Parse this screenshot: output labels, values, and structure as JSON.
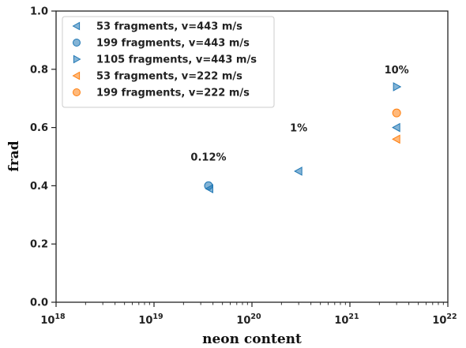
{
  "chart_data": {
    "type": "scatter",
    "xlabel": "neon content",
    "ylabel": "frad",
    "xscale": "log",
    "xlim": [
      1e+18,
      1e+22
    ],
    "ylim": [
      0,
      1.0
    ],
    "x_tick_labels": [
      {
        "base": "10",
        "exp": "18",
        "value": 1e+18
      },
      {
        "base": "10",
        "exp": "19",
        "value": 1e+19
      },
      {
        "base": "10",
        "exp": "20",
        "value": 1e+20
      },
      {
        "base": "10",
        "exp": "21",
        "value": 1e+21
      },
      {
        "base": "10",
        "exp": "22",
        "value": 1e+22
      }
    ],
    "y_ticks": [
      {
        "label": "0.0",
        "value": 0.0
      },
      {
        "label": "0.2",
        "value": 0.2
      },
      {
        "label": "0.4",
        "value": 0.4
      },
      {
        "label": "0.6",
        "value": 0.6
      },
      {
        "label": "0.8",
        "value": 0.8
      },
      {
        "label": "1.0",
        "value": 1.0
      }
    ],
    "legend_placement": "top-left",
    "series": [
      {
        "name": "53 fragments, v=443 m/s",
        "marker": "triangle-left",
        "color": "#1f77b4",
        "points": [
          {
            "x": 3.7e+19,
            "y": 0.39
          },
          {
            "x": 3e+20,
            "y": 0.45
          },
          {
            "x": 3e+21,
            "y": 0.6
          }
        ]
      },
      {
        "name": "199 fragments, v=443 m/s",
        "marker": "circle",
        "color": "#1f77b4",
        "points": [
          {
            "x": 3.6e+19,
            "y": 0.4
          }
        ]
      },
      {
        "name": "1105 fragments, v=443 m/s",
        "marker": "triangle-right",
        "color": "#1f77b4",
        "points": [
          {
            "x": 3e+21,
            "y": 0.74
          }
        ]
      },
      {
        "name": "53 fragments, v=222 m/s",
        "marker": "triangle-left",
        "color": "#ff7f0e",
        "points": [
          {
            "x": 3e+21,
            "y": 0.56
          }
        ]
      },
      {
        "name": "199 fragments, v=222 m/s",
        "marker": "circle",
        "color": "#ff7f0e",
        "points": [
          {
            "x": 3e+21,
            "y": 0.65
          }
        ]
      }
    ],
    "annotations": [
      {
        "text": "0.12%",
        "x": 3.6e+19,
        "y": 0.5
      },
      {
        "text": "1%",
        "x": 3e+20,
        "y": 0.6
      },
      {
        "text": "10%",
        "x": 3e+21,
        "y": 0.8
      }
    ]
  }
}
